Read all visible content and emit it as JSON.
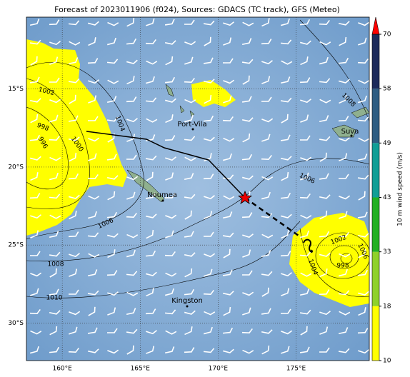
{
  "title": "Forecast of 2023011906 (f024), Sources: GDACS (TC track), GFS (Meteo)",
  "map": {
    "xlim": [
      157.7,
      179.7
    ],
    "ylim": [
      -32.4,
      -10.4
    ],
    "lon_ticks": [
      {
        "value": 160,
        "label": "160°E"
      },
      {
        "value": 165,
        "label": "165°E"
      },
      {
        "value": 170,
        "label": "170°E"
      },
      {
        "value": 175,
        "label": "175°E"
      }
    ],
    "lat_ticks": [
      {
        "value": -15,
        "label": "15°S"
      },
      {
        "value": -20,
        "label": "20°S"
      },
      {
        "value": -25,
        "label": "25°S"
      },
      {
        "value": -30,
        "label": "30°S"
      }
    ],
    "places": [
      "Port-Vila",
      "Suva",
      "Noumea",
      "Kingston"
    ],
    "contour_labels": [
      1002,
      998,
      996,
      1000,
      1004,
      1006,
      1008,
      1010,
      1006,
      1008,
      1002,
      1004,
      998,
      1006
    ]
  },
  "colorbar": {
    "label": "10 m wind speed (m/s)",
    "ticks": [
      10,
      18,
      33,
      43,
      49,
      58,
      70
    ],
    "colors": [
      "#ffff00",
      "#8fd12a",
      "#22b022",
      "#119e96",
      "#2e5d82",
      "#1c2a5a"
    ],
    "extend_color": "#ff0000"
  }
}
